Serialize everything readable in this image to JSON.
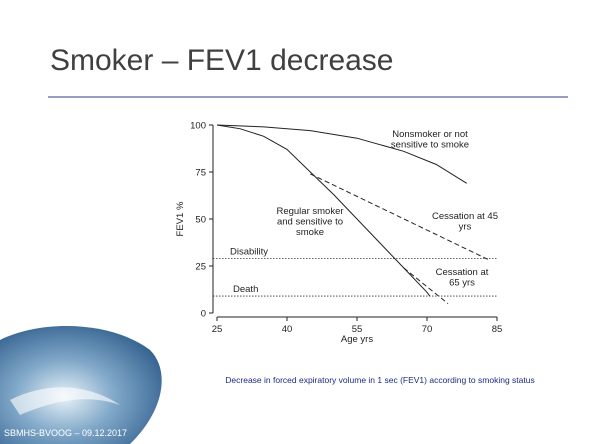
{
  "slide": {
    "title": "Smoker – FEV1 decrease",
    "caption": "Decrease in forced expiratory volume in 1 sec (FEV1) according to smoking status",
    "footer": "SBMHS-BVOOG – 09.12.2017"
  },
  "chart_data": {
    "type": "line",
    "xlabel": "Age yrs",
    "ylabel": "FEV1 %",
    "xlim": [
      25,
      85
    ],
    "xticks": [
      25,
      40,
      55,
      70,
      85
    ],
    "ylim": [
      0,
      100
    ],
    "yticks": [
      0,
      25,
      50,
      75,
      100
    ],
    "series": [
      {
        "label_lines": [
          "Nonsmoker or not",
          "sensitive to smoke"
        ],
        "color": "#222222",
        "style": "solid",
        "x": [
          25,
          35,
          45,
          55,
          65,
          72,
          78.5
        ],
        "values": [
          100,
          99,
          97,
          93,
          86,
          79,
          69
        ]
      },
      {
        "label_lines": [
          "Regular smoker",
          "and sensitive to",
          "smoke"
        ],
        "color": "#222222",
        "style": "solid",
        "x": [
          25,
          30,
          35,
          40,
          45,
          50,
          55,
          60,
          65,
          70,
          70.6
        ],
        "values": [
          100,
          98,
          94,
          87,
          75,
          63,
          50,
          37,
          24,
          11,
          9
        ]
      },
      {
        "label_lines": [
          "Cessation at 45",
          "yrs"
        ],
        "color": "#222222",
        "style": "dashed",
        "x": [
          45,
          83.5
        ],
        "values": [
          74,
          28
        ]
      },
      {
        "label_lines": [
          "Cessation at",
          "65 yrs"
        ],
        "color": "#222222",
        "style": "dashed",
        "x": [
          65,
          74.5
        ],
        "values": [
          24,
          5
        ]
      }
    ],
    "hlines": [
      {
        "label": "Disability",
        "value": 29
      },
      {
        "label": "Death",
        "value": 9
      }
    ]
  }
}
